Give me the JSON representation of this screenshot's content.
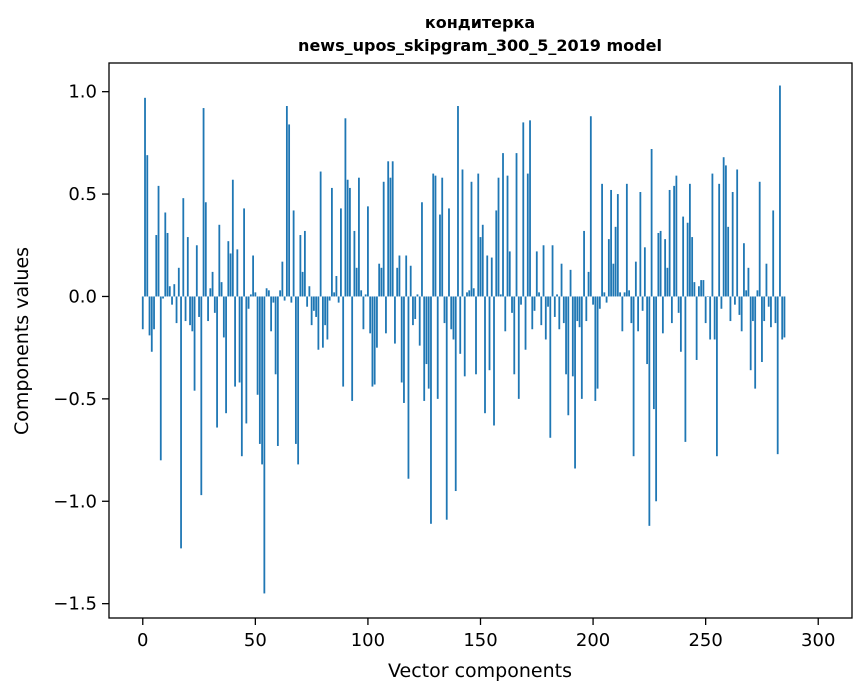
{
  "chart_data": {
    "type": "bar",
    "title": "кондитерка",
    "subtitle": "news_upos_skipgram_300_5_2019 model",
    "xlabel": "Vector components",
    "ylabel": "Components values",
    "xlim": [
      -15,
      315
    ],
    "ylim": [
      -1.57,
      1.14
    ],
    "xticks": [
      0,
      50,
      100,
      150,
      200,
      250,
      300
    ],
    "xtick_labels": [
      "0",
      "50",
      "100",
      "150",
      "200",
      "250",
      "300"
    ],
    "yticks": [
      1.0,
      0.5,
      0.0,
      -0.5,
      -1.0,
      -1.5
    ],
    "ytick_labels": [
      "1.0",
      "0.5",
      "0.0",
      "−0.5",
      "−1.0",
      "−1.5"
    ],
    "bar_color": "#1f77b4",
    "bar_width": 0.8,
    "values": [
      -0.16,
      0.97,
      0.69,
      -0.19,
      -0.27,
      -0.16,
      0.3,
      0.54,
      -0.8,
      -0.01,
      0.41,
      0.31,
      0.05,
      -0.04,
      0.06,
      -0.13,
      0.14,
      -1.23,
      0.48,
      -0.12,
      0.29,
      -0.14,
      -0.17,
      -0.46,
      0.25,
      -0.1,
      -0.97,
      0.92,
      0.46,
      -0.12,
      0.04,
      0.12,
      -0.08,
      -0.64,
      0.35,
      0.07,
      -0.2,
      -0.57,
      0.27,
      0.21,
      0.57,
      -0.44,
      0.23,
      -0.42,
      -0.78,
      0.43,
      -0.62,
      -0.06,
      0.01,
      0.2,
      0.02,
      -0.48,
      -0.72,
      -0.82,
      -1.45,
      0.04,
      0.03,
      -0.17,
      -0.03,
      -0.38,
      -0.73,
      0.03,
      0.17,
      -0.02,
      0.93,
      0.84,
      -0.03,
      0.42,
      -0.72,
      -0.82,
      0.3,
      0.12,
      0.32,
      -0.05,
      0.05,
      -0.14,
      -0.07,
      -0.1,
      -0.26,
      0.61,
      -0.25,
      -0.14,
      -0.21,
      -0.02,
      0.53,
      0.02,
      0.1,
      -0.03,
      0.43,
      -0.44,
      0.87,
      0.57,
      0.53,
      -0.51,
      0.32,
      0.14,
      0.58,
      0.03,
      -0.16,
      0.01,
      0.44,
      -0.18,
      -0.44,
      -0.43,
      -0.25,
      0.16,
      0.14,
      0.56,
      -0.18,
      0.66,
      0.58,
      0.66,
      -0.23,
      0.14,
      0.2,
      -0.42,
      -0.52,
      0.2,
      -0.89,
      0.15,
      -0.14,
      -0.11,
      0.01,
      -0.24,
      0.46,
      -0.51,
      -0.33,
      -0.45,
      -1.11,
      0.6,
      0.59,
      -0.5,
      0.4,
      0.58,
      -0.13,
      -1.09,
      0.43,
      -0.16,
      -0.21,
      -0.95,
      0.93,
      -0.28,
      0.62,
      -0.39,
      0.02,
      0.03,
      0.56,
      0.04,
      -0.38,
      0.6,
      0.29,
      0.35,
      -0.57,
      0.2,
      -0.36,
      0.19,
      -0.63,
      0.42,
      0.58,
      0.01,
      0.7,
      -0.17,
      0.59,
      0.22,
      -0.08,
      -0.38,
      0.7,
      -0.5,
      -0.04,
      0.85,
      -0.26,
      0.6,
      0.86,
      -0.16,
      -0.07,
      0.22,
      0.02,
      -0.14,
      0.25,
      -0.21,
      -0.05,
      -0.69,
      0.25,
      -0.1,
      0.01,
      -0.16,
      0.16,
      -0.13,
      -0.38,
      -0.58,
      0.13,
      -0.39,
      -0.84,
      -0.12,
      -0.15,
      -0.5,
      0.32,
      -0.12,
      0.12,
      0.88,
      -0.04,
      -0.51,
      -0.45,
      -0.06,
      0.55,
      0.02,
      -0.03,
      0.28,
      0.52,
      0.16,
      0.34,
      0.5,
      0.02,
      -0.17,
      0.02,
      0.55,
      0.03,
      -0.13,
      -0.78,
      0.17,
      -0.17,
      0.51,
      -0.07,
      0.24,
      -0.33,
      -1.12,
      0.72,
      -0.55,
      -1.0,
      0.31,
      0.32,
      -0.18,
      0.28,
      0.14,
      0.52,
      -0.13,
      0.54,
      0.59,
      -0.08,
      -0.27,
      0.39,
      -0.71,
      0.36,
      0.55,
      0.29,
      0.07,
      -0.31,
      0.05,
      0.08,
      0.08,
      -0.13,
      0.0,
      -0.21,
      0.6,
      -0.21,
      -0.78,
      0.55,
      -0.06,
      0.68,
      0.64,
      0.34,
      -0.12,
      0.51,
      -0.04,
      0.62,
      -0.09,
      -0.17,
      0.26,
      0.03,
      0.14,
      -0.36,
      -0.12,
      -0.45,
      0.03,
      0.56,
      -0.32,
      -0.12,
      0.16,
      -0.05,
      -0.15,
      0.42,
      -0.13,
      -0.77,
      1.03,
      -0.21,
      -0.2
    ]
  }
}
